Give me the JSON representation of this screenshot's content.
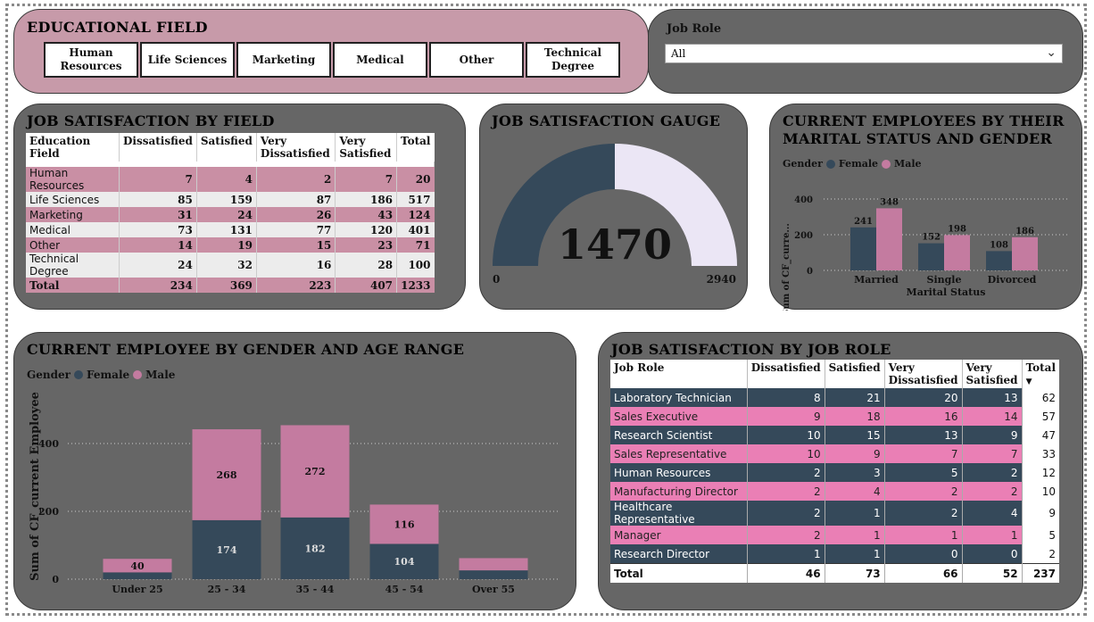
{
  "education": {
    "title": "EDUCATIONAL FIELD",
    "buttons": [
      "Human Resources",
      "Life Sciences",
      "Marketing",
      "Medical",
      "Other",
      "Technical Degree"
    ]
  },
  "jobrole_filter": {
    "label": "Job Role",
    "value": "All"
  },
  "field_table": {
    "title": "JOB SATISFACTION BY FIELD",
    "headers": [
      "Education Field",
      "Dissatisfied",
      "Satisfied",
      "Very Dissatisfied",
      "Very Satisfied",
      "Total"
    ],
    "rows": [
      [
        "Human Resources",
        "7",
        "4",
        "2",
        "7",
        "20"
      ],
      [
        "Life Sciences",
        "85",
        "159",
        "87",
        "186",
        "517"
      ],
      [
        "Marketing",
        "31",
        "24",
        "26",
        "43",
        "124"
      ],
      [
        "Medical",
        "73",
        "131",
        "77",
        "120",
        "401"
      ],
      [
        "Other",
        "14",
        "19",
        "15",
        "23",
        "71"
      ],
      [
        "Technical Degree",
        "24",
        "32",
        "16",
        "28",
        "100"
      ]
    ],
    "total": [
      "Total",
      "234",
      "369",
      "223",
      "407",
      "1233"
    ]
  },
  "gauge": {
    "title": "JOB SATISFACTION GAUGE",
    "value": "1470",
    "min": "0",
    "max": "2940",
    "fill_fraction": 0.5
  },
  "marital_chart": {
    "title": "CURRENT EMPLOYEES BY THEIR MARITAL STATUS AND GENDER",
    "legend_title": "Gender",
    "xlabel": "Marital Status",
    "ylabel": "Sum of CF_curre...",
    "ticks": [
      "0",
      "200",
      "400"
    ]
  },
  "age_chart": {
    "title": "CURRENT EMPLOYEE BY GENDER AND AGE RANGE",
    "legend_title": "Gender",
    "ylabel": "Sum of CF_current Employee",
    "ticks": [
      "0",
      "200",
      "400"
    ]
  },
  "role_table": {
    "title": "JOB SATISFACTION BY JOB ROLE",
    "headers": [
      "Job Role",
      "Dissatisfied",
      "Satisfied",
      "Very Dissatisfied",
      "Very Satisfied",
      "Total"
    ],
    "sort_indicator": "▼",
    "rows": [
      [
        "Laboratory Technician",
        "8",
        "21",
        "20",
        "13",
        "62"
      ],
      [
        "Sales Executive",
        "9",
        "18",
        "16",
        "14",
        "57"
      ],
      [
        "Research Scientist",
        "10",
        "15",
        "13",
        "9",
        "47"
      ],
      [
        "Sales Representative",
        "10",
        "9",
        "7",
        "7",
        "33"
      ],
      [
        "Human Resources",
        "2",
        "3",
        "5",
        "2",
        "12"
      ],
      [
        "Manufacturing Director",
        "2",
        "4",
        "2",
        "2",
        "10"
      ],
      [
        "Healthcare Representative",
        "2",
        "1",
        "2",
        "4",
        "9"
      ],
      [
        "Manager",
        "2",
        "1",
        "1",
        "1",
        "5"
      ],
      [
        "Research Director",
        "1",
        "1",
        "0",
        "0",
        "2"
      ]
    ],
    "total": [
      "Total",
      "46",
      "73",
      "66",
      "52",
      "237"
    ]
  },
  "colors": {
    "female": "#35495a",
    "male": "#c47ba0",
    "gauge_fill": "#35495a",
    "gauge_rest": "#ebe6f5"
  },
  "chart_data": [
    {
      "type": "bar",
      "title": "CURRENT EMPLOYEES BY THEIR MARITAL STATUS AND GENDER",
      "categories": [
        "Married",
        "Single",
        "Divorced"
      ],
      "series": [
        {
          "name": "Female",
          "values": [
            241,
            152,
            108
          ]
        },
        {
          "name": "Male",
          "values": [
            348,
            198,
            186
          ]
        }
      ],
      "xlabel": "Marital Status",
      "ylabel": "Sum of CF_curre...",
      "ylim": [
        0,
        450
      ],
      "legend": "top-left",
      "grid": true
    },
    {
      "type": "bar",
      "stacked": true,
      "title": "CURRENT EMPLOYEE BY GENDER AND AGE RANGE",
      "categories": [
        "Under 25",
        "25 - 34",
        "35 - 44",
        "45 - 54",
        "Over 55"
      ],
      "series": [
        {
          "name": "Female",
          "values": [
            20,
            174,
            182,
            104,
            26
          ]
        },
        {
          "name": "Male",
          "values": [
            40,
            268,
            272,
            116,
            36
          ]
        }
      ],
      "ylabel": "Sum of CF_current Employee",
      "ylim": [
        0,
        500
      ],
      "legend": "top-left",
      "grid": true
    }
  ]
}
